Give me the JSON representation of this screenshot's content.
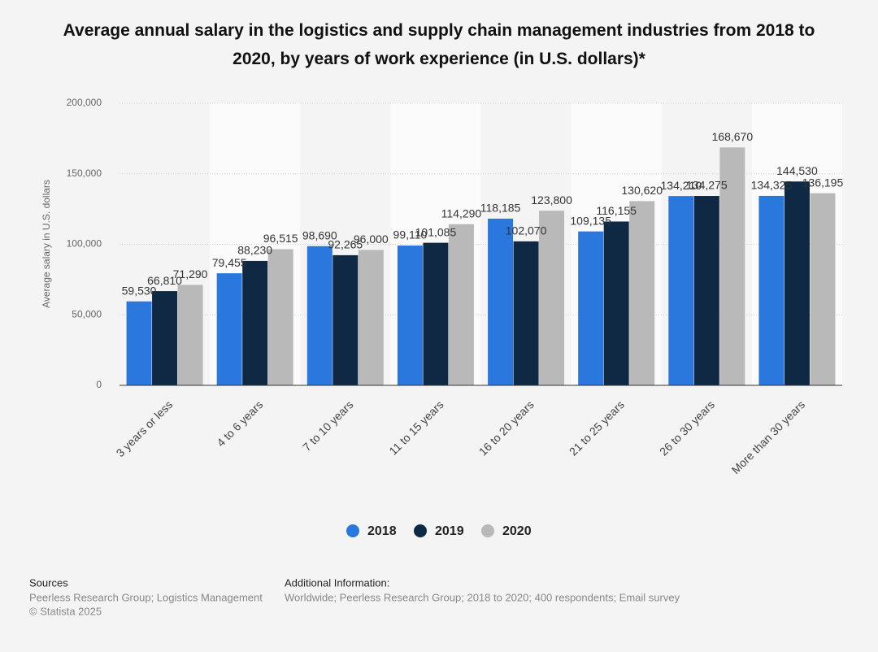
{
  "chart_data": {
    "type": "bar",
    "title": "Average annual salary in the logistics and supply chain management industries from 2018 to 2020, by years of work experience (in U.S. dollars)*",
    "y_label": "Average salary in U.S. dollars",
    "categories": [
      "3 years or less",
      "4 to 6 years",
      "7 to 10 years",
      "11 to 15 years",
      "16 to 20 years",
      "21 to 25 years",
      "26 to 30 years",
      "More than 30 years"
    ],
    "series": [
      {
        "name": "2018",
        "color": "#2a78de",
        "values": [
          59530,
          79455,
          98690,
          99110,
          118185,
          109135,
          134210,
          134325
        ],
        "value_labels": [
          "59,530",
          "79,455",
          "98,690",
          "99,110",
          "118,185",
          "109,135",
          "134,210",
          "134,325"
        ]
      },
      {
        "name": "2019",
        "color": "#0f2843",
        "values": [
          66810,
          88230,
          92265,
          101085,
          102070,
          116155,
          134275,
          144530
        ],
        "value_labels": [
          "66,810",
          "88,230",
          "92,265",
          "101,085",
          "102,070",
          "116,155",
          "134,275",
          "144,530"
        ]
      },
      {
        "name": "2020",
        "color": "#b9b9b9",
        "values": [
          71290,
          96515,
          96000,
          114290,
          123800,
          130620,
          168670,
          136195
        ],
        "value_labels": [
          "71,290",
          "96,515",
          "96,000",
          "114,290",
          "123,800",
          "130,620",
          "168,670",
          "136,195"
        ]
      }
    ],
    "ylim": [
      0,
      200000
    ],
    "yticks": [
      0,
      {
        "value": 50000,
        "label": "50,000"
      },
      {
        "value": 100000,
        "label": "100,000"
      },
      {
        "value": 150000,
        "label": "150,000"
      },
      {
        "value": 200000,
        "label": "200,000"
      }
    ],
    "grid": true,
    "legend": "bottom"
  },
  "footer": {
    "sources_title": "Sources",
    "sources_text": "Peerless Research Group; Logistics Management",
    "copyright": "© Statista 2025",
    "info_title": "Additional Information:",
    "info_text": "Worldwide; Peerless Research Group; 2018 to 2020; 400 respondents; Email survey"
  }
}
